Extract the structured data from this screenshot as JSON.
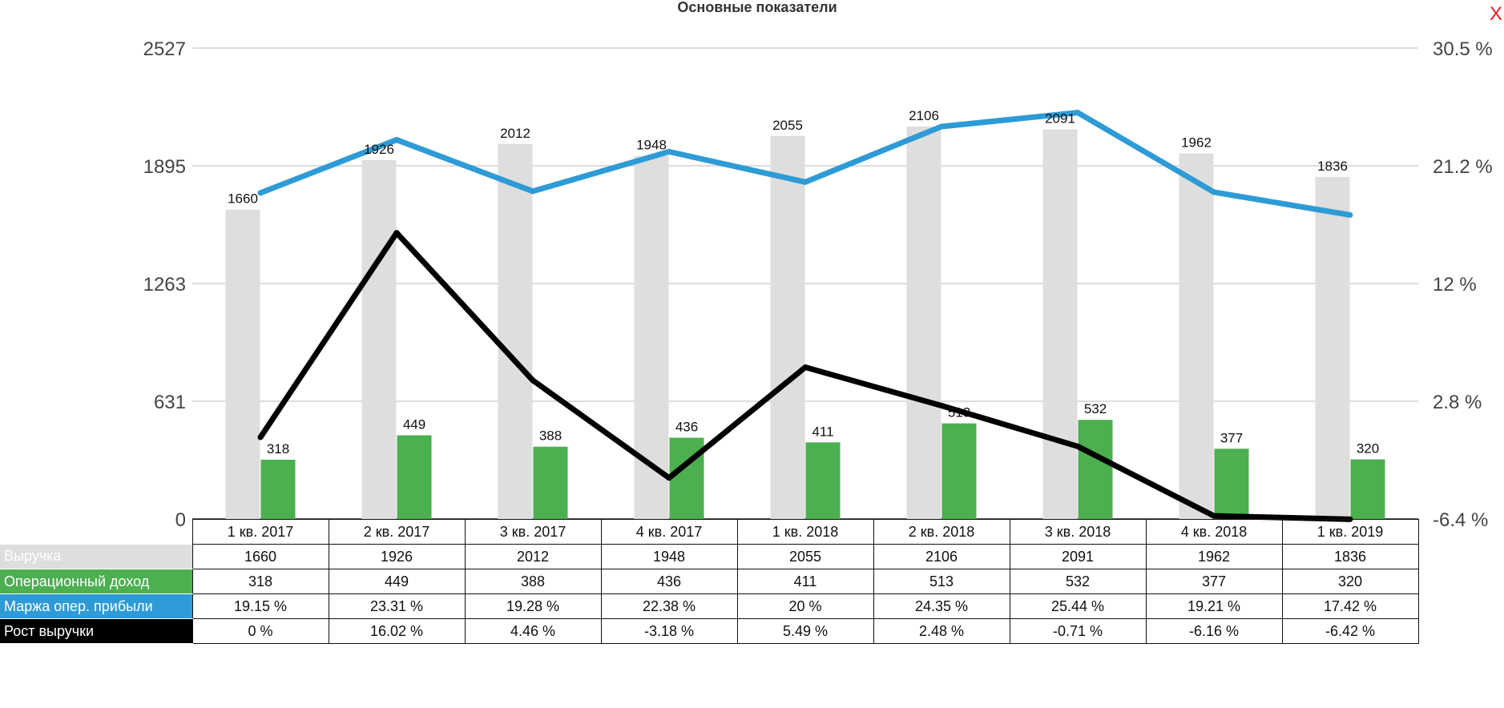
{
  "chart_data": {
    "type": "bar",
    "title": "Основные показатели",
    "categories": [
      "1 кв. 2017",
      "2 кв. 2017",
      "3 кв. 2017",
      "4 кв. 2017",
      "1 кв. 2018",
      "2 кв. 2018",
      "3 кв. 2018",
      "4 кв. 2018",
      "1 кв. 2019"
    ],
    "left_axis": {
      "ylim": [
        0,
        2527
      ],
      "ticks": [
        "0",
        "631",
        "1263",
        "1895",
        "2527"
      ]
    },
    "right_axis": {
      "ylim": [
        -6.4,
        30.5
      ],
      "ticks": [
        "-6.4 %",
        "2.8 %",
        "12 %",
        "21.2 %",
        "30.5 %"
      ]
    },
    "grid": true,
    "series": [
      {
        "name": "Выручка",
        "kind": "bar",
        "axis": "left",
        "color": "#dedede",
        "values": [
          1660,
          1926,
          2012,
          1948,
          2055,
          2106,
          2091,
          1962,
          1836
        ],
        "labels": [
          "1660",
          "1926",
          "2012",
          "1948",
          "2055",
          "2106",
          "2091",
          "1962",
          "1836"
        ]
      },
      {
        "name": "Операционный доход",
        "kind": "bar",
        "axis": "left",
        "color": "#4caf50",
        "values": [
          318,
          449,
          388,
          436,
          411,
          513,
          532,
          377,
          320
        ],
        "labels": [
          "318",
          "449",
          "388",
          "436",
          "411",
          "513",
          "532",
          "377",
          "320"
        ]
      },
      {
        "name": "Маржа опер. прибыли",
        "kind": "line",
        "axis": "right",
        "color": "#2e9bd6",
        "values": [
          19.15,
          23.31,
          19.28,
          22.38,
          20,
          24.35,
          25.44,
          19.21,
          17.42
        ],
        "labels": [
          "19.15 %",
          "23.31 %",
          "19.28 %",
          "22.38 %",
          "20 %",
          "24.35 %",
          "25.44 %",
          "19.21 %",
          "17.42 %"
        ]
      },
      {
        "name": "Рост выручки",
        "kind": "line",
        "axis": "right",
        "color": "#000000",
        "values": [
          0,
          16.02,
          4.46,
          -3.18,
          5.49,
          2.48,
          -0.71,
          -6.16,
          -6.42
        ],
        "labels": [
          "0 %",
          "16.02 %",
          "4.46 %",
          "-3.18 %",
          "5.49 %",
          "2.48 %",
          "-0.71 %",
          "-6.16 %",
          "-6.42 %"
        ]
      }
    ]
  },
  "close_icon": "close-icon",
  "close_glyph": "X",
  "close_color": "#e02020",
  "table": {
    "rows": [
      {
        "label": "Выручка",
        "bg": "#dedede",
        "fg": "#ffffff"
      },
      {
        "label": "Операционный доход",
        "bg": "#4caf50",
        "fg": "#ffffff"
      },
      {
        "label": "Маржа опер. прибыли",
        "bg": "#2e9bd6",
        "fg": "#ffffff"
      },
      {
        "label": "Рост выручки",
        "bg": "#000000",
        "fg": "#ffffff"
      }
    ]
  }
}
